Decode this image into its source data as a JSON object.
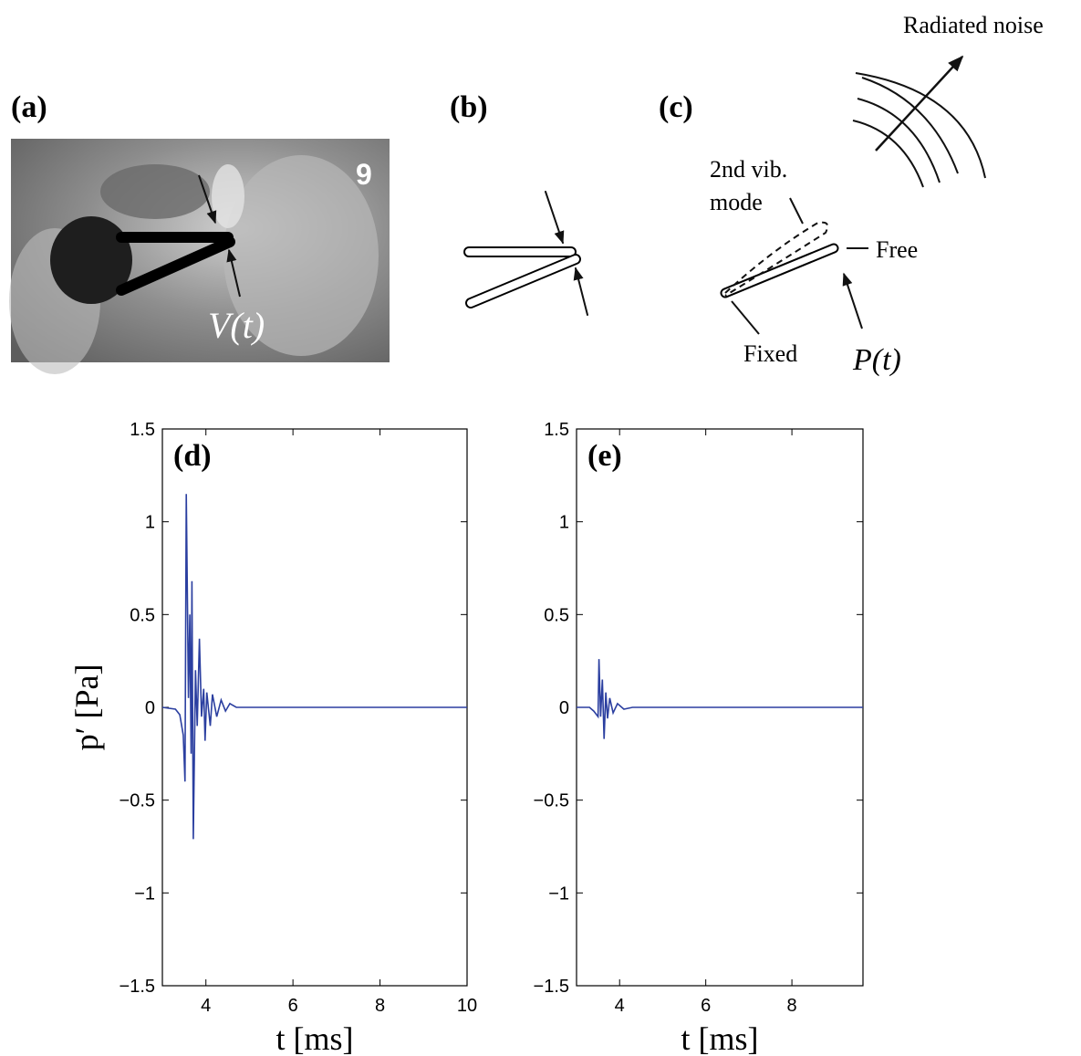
{
  "panels": {
    "a": {
      "label": "(a)",
      "frame_number": "9",
      "annotation": "V(t)"
    },
    "b": {
      "label": "(b)"
    },
    "c": {
      "label": "(c)",
      "radiated": "Radiated noise",
      "mode_lines": [
        "2nd vib.",
        "mode"
      ],
      "free": "Free",
      "fixed": "Fixed",
      "force": "P(t)"
    }
  },
  "chart_data": [
    {
      "type": "line",
      "annotation": "(d)",
      "xlabel": "t [ms]",
      "ylabel": "p′ [Pa]",
      "color": "#2b3fa0",
      "x": [
        3.0,
        3.3,
        3.4,
        3.48,
        3.52,
        3.55,
        3.6,
        3.63,
        3.66,
        3.68,
        3.71,
        3.76,
        3.8,
        3.85,
        3.9,
        3.95,
        3.98,
        4.02,
        4.1,
        4.15,
        4.25,
        4.35,
        4.45,
        4.55,
        4.7,
        10.0
      ],
      "values": [
        0,
        -0.01,
        -0.04,
        -0.15,
        -0.4,
        1.15,
        0.05,
        0.5,
        -0.25,
        0.68,
        -0.71,
        0.2,
        -0.1,
        0.37,
        -0.05,
        0.1,
        -0.18,
        0.08,
        -0.1,
        0.07,
        -0.05,
        0.04,
        -0.02,
        0.02,
        0,
        0
      ],
      "xlim": [
        3,
        10
      ],
      "ylim": [
        -1.5,
        1.5
      ],
      "xticks": [
        4,
        6,
        8,
        10
      ],
      "yticks": [
        {
          "value": -1.5,
          "label": "−1.5"
        },
        {
          "value": -1,
          "label": "−1"
        },
        {
          "value": -0.5,
          "label": "−0.5"
        },
        0,
        0.5,
        1,
        1.5
      ]
    },
    {
      "type": "line",
      "annotation": "(e)",
      "xlabel": "t [ms]",
      "color": "#2b3fa0",
      "x": [
        3.0,
        3.3,
        3.4,
        3.5,
        3.52,
        3.56,
        3.6,
        3.64,
        3.68,
        3.72,
        3.77,
        3.85,
        3.95,
        4.1,
        4.3,
        9.65
      ],
      "values": [
        0,
        0,
        -0.02,
        -0.05,
        0.26,
        -0.05,
        0.15,
        -0.17,
        0.08,
        -0.06,
        0.05,
        -0.03,
        0.02,
        -0.01,
        0,
        0
      ],
      "xlim": [
        3,
        9.65
      ],
      "ylim": [
        -1.5,
        1.5
      ],
      "xticks": [
        4,
        6,
        8
      ],
      "yticks": [
        {
          "value": -1.5,
          "label": "−1.5"
        },
        {
          "value": -1,
          "label": "−1"
        },
        {
          "value": -0.5,
          "label": "−0.5"
        },
        0,
        0.5,
        1,
        1.5
      ]
    }
  ]
}
